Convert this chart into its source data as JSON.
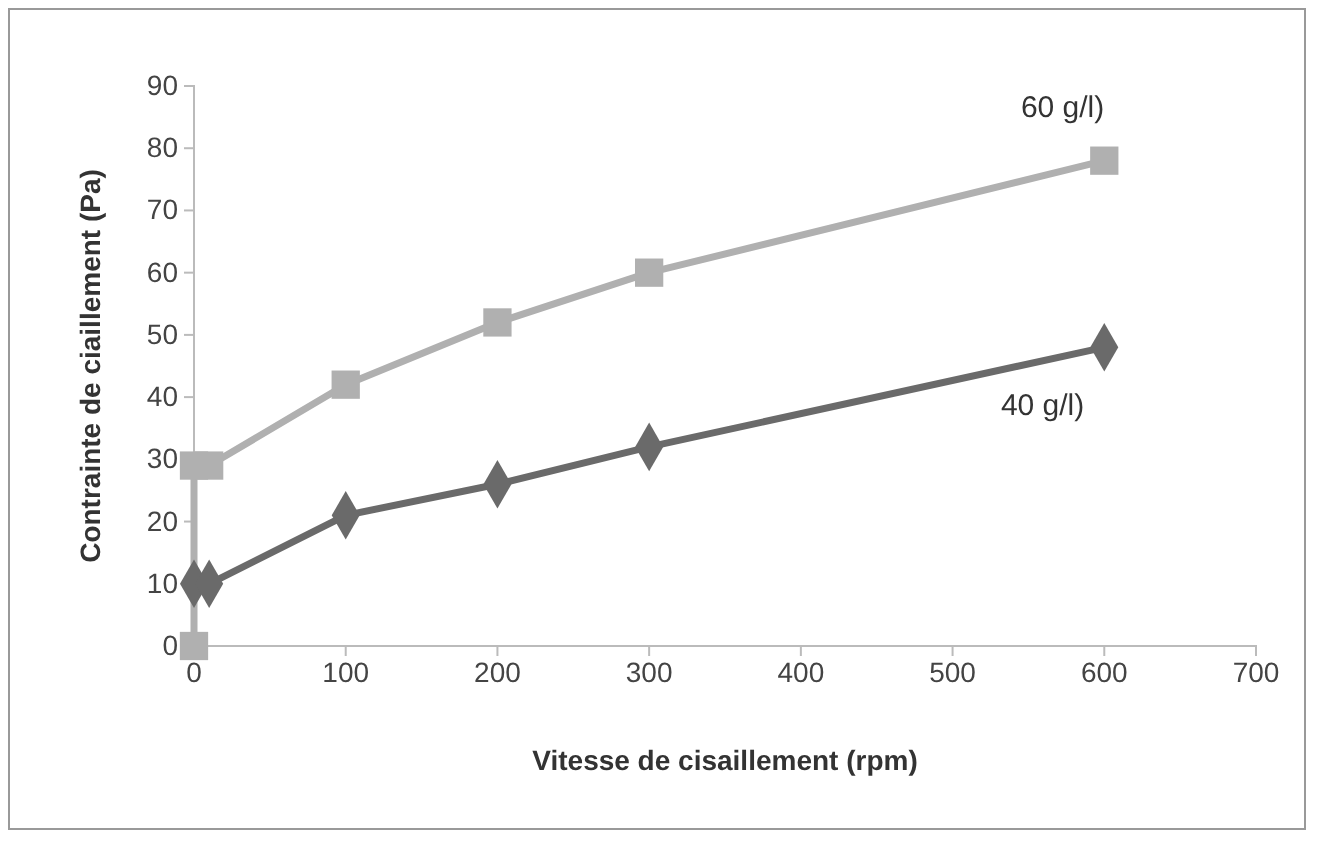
{
  "chart_data": {
    "type": "line",
    "xlabel": "Vitesse de cisaillement (rpm)",
    "ylabel": "Contrainte de ciaillement (Pa)",
    "xlim": [
      0,
      700
    ],
    "xticks": [
      0,
      100,
      200,
      300,
      400,
      500,
      600,
      700
    ],
    "ylim": [
      0,
      90
    ],
    "yticks": [
      0,
      10,
      20,
      30,
      40,
      50,
      60,
      70,
      80,
      90
    ],
    "grid": false,
    "series": [
      {
        "name": "60 g/l)",
        "color": "#b0b0b0",
        "marker": "square",
        "x": [
          0,
          0,
          10,
          100,
          200,
          300,
          600
        ],
        "values": [
          0,
          29,
          29,
          42,
          52,
          60,
          78
        ]
      },
      {
        "name": "40 g/l)",
        "color": "#6a6a6a",
        "marker": "diamond",
        "x": [
          0,
          10,
          100,
          200,
          300,
          600
        ],
        "values": [
          10,
          10,
          21,
          26,
          32,
          48
        ]
      }
    ]
  }
}
